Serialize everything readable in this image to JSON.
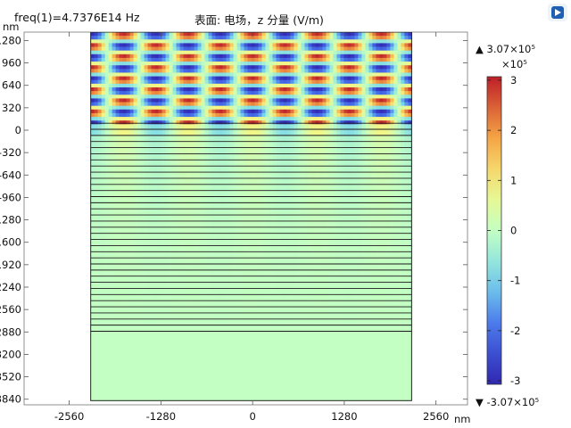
{
  "header": {
    "freq_label": "freq(1)=4.7376E14 Hz",
    "surface_title": "表面: 电场，z 分量 (V/m)"
  },
  "toolbar": {
    "icon": "play-icon",
    "accent": "#1f5fb4"
  },
  "chart_data": {
    "type": "heatmap",
    "title": "表面: 电场，z 分量 (V/m)",
    "subtitle": "freq(1)=4.7376E14 Hz",
    "xlabel": "nm",
    "ylabel": "nm",
    "x_ticks": [
      -2560,
      -1280,
      0,
      1280,
      2560
    ],
    "y_ticks": [
      1280,
      960,
      640,
      320,
      0,
      -320,
      -640,
      -960,
      -1280,
      -1600,
      -1920,
      -2240,
      -2560,
      -2880,
      -3200,
      -3520,
      -3840
    ],
    "xlim": [
      -3190,
      3000
    ],
    "ylim": [
      -3920,
      1400
    ],
    "domain": {
      "x": [
        -2260,
        2220
      ],
      "y": [
        -3860,
        1400
      ]
    },
    "field": {
      "period_x_nm": 900,
      "period_y_nm": 315,
      "amplitude_upper": 307000.0,
      "amplitude_interface": 80000.0,
      "amplitude_layers": 40000.0,
      "amplitude_substrate": 0
    },
    "layers_range_nm": [
      -2870,
      100
    ],
    "colorbar": {
      "multiplier": "×10⁵",
      "ticks": [
        3,
        2,
        1,
        0,
        -1,
        -2,
        -3
      ],
      "tick_labels": [
        "3",
        "2",
        "1",
        "0",
        "-1",
        "-2",
        "-3"
      ],
      "max_label": "▲ 3.07×10⁵",
      "min_label": "▼ -3.07×10⁵",
      "range": [
        -3.07,
        3.07
      ],
      "colormap": "rainbow"
    }
  }
}
